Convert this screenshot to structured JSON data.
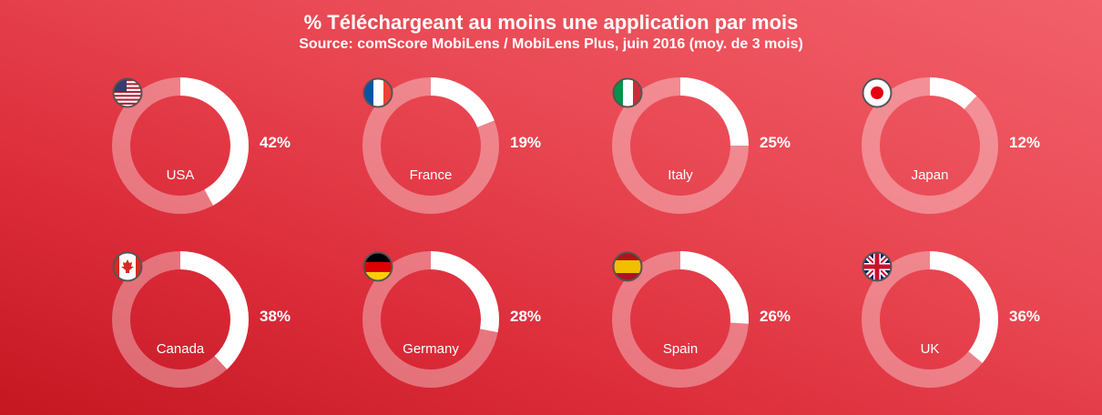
{
  "chart_data": {
    "type": "donut",
    "title": "% Téléchargeant au moins une application par mois",
    "subtitle": "Source: comScore MobiLens / MobiLens Plus, juin 2016 (moy. de 3 mois)",
    "categories": [
      "USA",
      "France",
      "Italy",
      "Japan",
      "Canada",
      "Germany",
      "Spain",
      "UK"
    ],
    "values": [
      42,
      19,
      25,
      12,
      38,
      28,
      26,
      36
    ],
    "labels": [
      "42%",
      "19%",
      "25%",
      "12%",
      "38%",
      "28%",
      "26%",
      "36%"
    ],
    "flags": [
      "usa-flag-icon",
      "france-flag-icon",
      "italy-flag-icon",
      "japan-flag-icon",
      "canada-flag-icon",
      "germany-flag-icon",
      "spain-flag-icon",
      "uk-flag-icon"
    ],
    "colors": {
      "filled": "#ffffff",
      "track": "#ffffff"
    }
  }
}
